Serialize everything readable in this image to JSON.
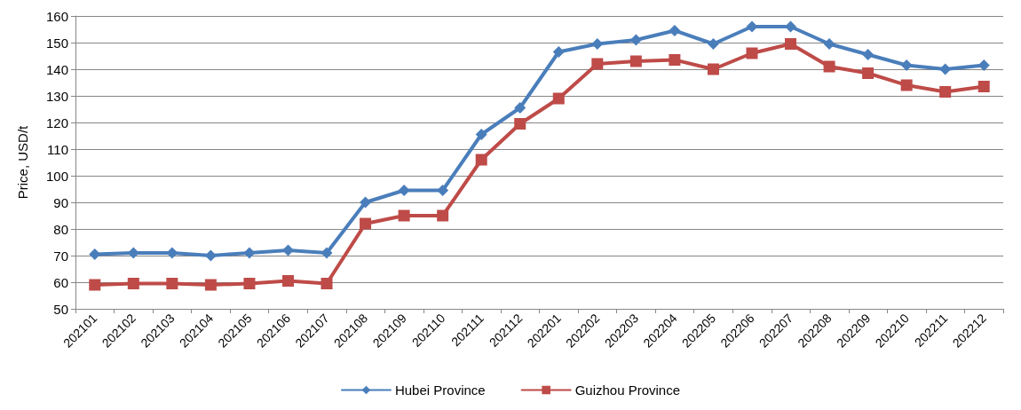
{
  "chart_data": {
    "type": "line",
    "ylabel": "Price, USD/t",
    "categories": [
      "202101",
      "202102",
      "202103",
      "202104",
      "202105",
      "202106",
      "202107",
      "202108",
      "202109",
      "202110",
      "202111",
      "202112",
      "202201",
      "202202",
      "202203",
      "202204",
      "202205",
      "202206",
      "202207",
      "202208",
      "202209",
      "202210",
      "202211",
      "202212"
    ],
    "series": [
      {
        "name": "Hubei Province",
        "color": "#4a7ebb",
        "marker": "diamond",
        "values": [
          70.5,
          71,
          71,
          70,
          71,
          72,
          71,
          90,
          94.5,
          94.5,
          115.5,
          125.5,
          146.5,
          149.5,
          151,
          154.5,
          149.5,
          156,
          156,
          149.5,
          145.5,
          141.5,
          140,
          141.5
        ]
      },
      {
        "name": "Guizhou Province",
        "color": "#be4b48",
        "marker": "square",
        "values": [
          59,
          59.5,
          59.5,
          59,
          59.5,
          60.5,
          59.5,
          82,
          85,
          85,
          106,
          119.5,
          129,
          142,
          143,
          143.5,
          140,
          146,
          149.5,
          141,
          138.5,
          134,
          131.5,
          133.5
        ]
      }
    ],
    "ylim": [
      50,
      160
    ],
    "yticks": [
      50,
      60,
      70,
      80,
      90,
      100,
      110,
      120,
      130,
      140,
      150,
      160
    ],
    "grid": "y",
    "legend": "bottom",
    "line_style": "solid"
  }
}
